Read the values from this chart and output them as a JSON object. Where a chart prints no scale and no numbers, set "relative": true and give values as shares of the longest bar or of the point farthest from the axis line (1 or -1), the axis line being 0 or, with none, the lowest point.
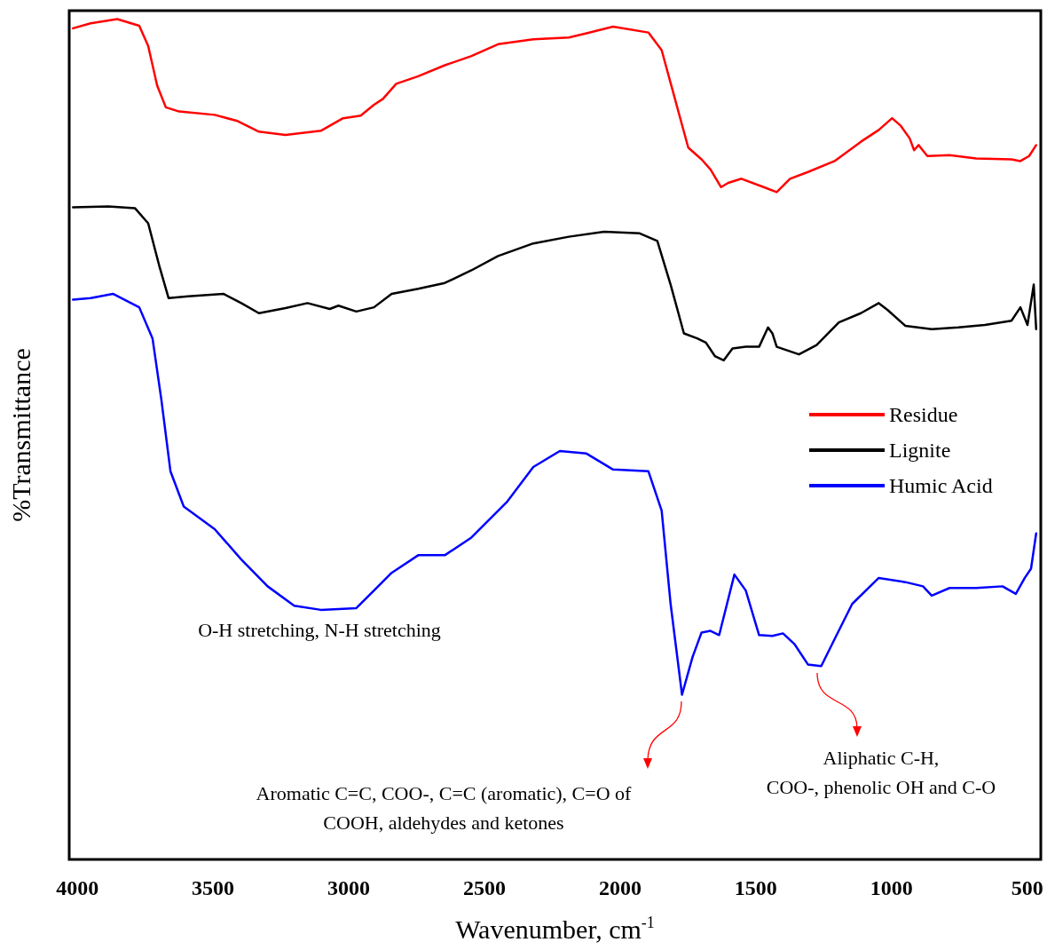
{
  "chart_data": {
    "type": "line",
    "relative": true,
    "xlabel": "Wavenumber, cm$^{-1}$",
    "ylabel": "%Transmittance",
    "xlim": [
      4030,
      450
    ],
    "xticks": [
      4000,
      3500,
      3000,
      2500,
      2000,
      1500,
      1000,
      500
    ],
    "legend": "right",
    "grid": false,
    "marker": "none",
    "line_style": "solid",
    "series": [
      {
        "name": "Residue",
        "color": "#ff0000",
        "x": [
          4016,
          3951,
          3853,
          3772,
          3739,
          3706,
          3674,
          3625,
          3494,
          3413,
          3331,
          3233,
          3103,
          3021,
          2956,
          2907,
          2874,
          2825,
          2744,
          2646,
          2548,
          2450,
          2320,
          2189,
          2124,
          2026,
          1896,
          1847,
          1798,
          1749,
          1700,
          1667,
          1628,
          1602,
          1553,
          1471,
          1423,
          1374,
          1308,
          1210,
          1113,
          1047,
          998,
          966,
          933,
          917,
          900,
          868,
          786,
          688,
          558,
          525,
          493,
          467
        ],
        "values": [
          0.989,
          0.995,
          1.0,
          0.992,
          0.968,
          0.921,
          0.895,
          0.89,
          0.886,
          0.879,
          0.866,
          0.862,
          0.867,
          0.882,
          0.885,
          0.898,
          0.905,
          0.923,
          0.932,
          0.945,
          0.956,
          0.97,
          0.976,
          0.978,
          0.983,
          0.991,
          0.984,
          0.963,
          0.905,
          0.847,
          0.833,
          0.821,
          0.8,
          0.805,
          0.81,
          0.8,
          0.794,
          0.81,
          0.818,
          0.831,
          0.854,
          0.868,
          0.882,
          0.873,
          0.858,
          0.844,
          0.85,
          0.837,
          0.838,
          0.834,
          0.833,
          0.831,
          0.837,
          0.85
        ]
      },
      {
        "name": "Lignite",
        "color": "#000000",
        "x": [
          4016,
          3886,
          3788,
          3739,
          3697,
          3664,
          3592,
          3462,
          3396,
          3331,
          3233,
          3152,
          3070,
          3038,
          2972,
          2907,
          2842,
          2744,
          2646,
          2548,
          2450,
          2320,
          2189,
          2059,
          1928,
          1863,
          1814,
          1765,
          1716,
          1684,
          1651,
          1618,
          1586,
          1537,
          1488,
          1455,
          1439,
          1423,
          1341,
          1276,
          1194,
          1113,
          1047,
          1015,
          949,
          852,
          754,
          656,
          558,
          525,
          499,
          476,
          467
        ],
        "values": [
          0.776,
          0.777,
          0.775,
          0.757,
          0.705,
          0.668,
          0.67,
          0.673,
          0.662,
          0.65,
          0.656,
          0.662,
          0.655,
          0.659,
          0.652,
          0.657,
          0.673,
          0.679,
          0.686,
          0.701,
          0.718,
          0.733,
          0.741,
          0.747,
          0.745,
          0.736,
          0.684,
          0.626,
          0.62,
          0.615,
          0.599,
          0.594,
          0.608,
          0.61,
          0.61,
          0.633,
          0.626,
          0.61,
          0.601,
          0.612,
          0.639,
          0.65,
          0.662,
          0.654,
          0.635,
          0.631,
          0.633,
          0.636,
          0.641,
          0.657,
          0.636,
          0.684,
          0.631
        ]
      },
      {
        "name": "Humic Acid",
        "color": "#0000ff",
        "x": [
          4016,
          3951,
          3869,
          3772,
          3723,
          3690,
          3657,
          3608,
          3494,
          3396,
          3299,
          3201,
          3103,
          2972,
          2907,
          2842,
          2744,
          2646,
          2548,
          2418,
          2320,
          2222,
          2124,
          2026,
          1896,
          1847,
          1814,
          1772,
          1733,
          1700,
          1667,
          1635,
          1579,
          1537,
          1488,
          1439,
          1400,
          1357,
          1308,
          1259,
          1210,
          1145,
          1047,
          949,
          884,
          852,
          786,
          688,
          591,
          542,
          509,
          486,
          467
        ],
        "values": [
          0.666,
          0.668,
          0.673,
          0.657,
          0.62,
          0.546,
          0.462,
          0.42,
          0.393,
          0.357,
          0.325,
          0.302,
          0.297,
          0.299,
          0.32,
          0.341,
          0.362,
          0.362,
          0.383,
          0.425,
          0.467,
          0.486,
          0.483,
          0.464,
          0.462,
          0.415,
          0.304,
          0.196,
          0.241,
          0.27,
          0.272,
          0.267,
          0.339,
          0.32,
          0.267,
          0.266,
          0.269,
          0.256,
          0.232,
          0.23,
          0.262,
          0.304,
          0.335,
          0.33,
          0.325,
          0.314,
          0.323,
          0.323,
          0.325,
          0.316,
          0.335,
          0.346,
          0.388
        ]
      }
    ],
    "annotations": [
      "O-H stretching, N-H stretching",
      "Aromatic C=C, COO-, C=C (aromatic), C=O of\nCOOH, aldehydes and ketones",
      "Aliphatic C-H,\nCOO-, phenolic OH and C-O"
    ]
  }
}
